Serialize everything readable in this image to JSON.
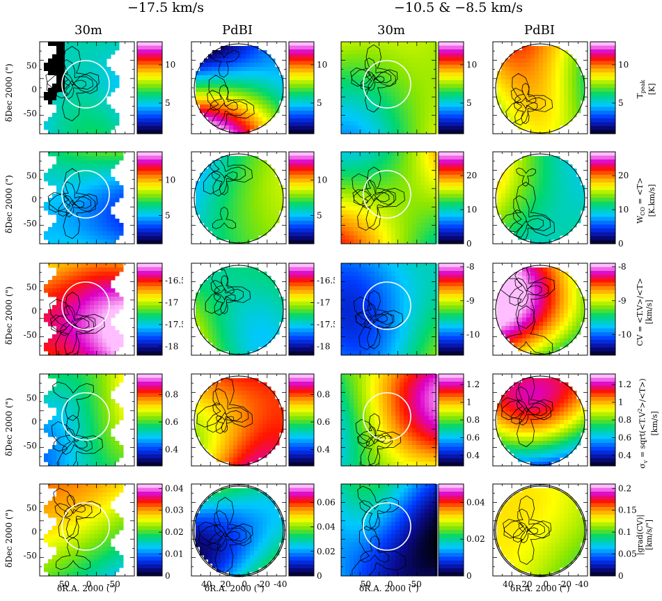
{
  "figure": {
    "group_headers": [
      "−17.5 km/s",
      "−10.5 & −8.5 km/s"
    ],
    "column_headers": [
      "30m",
      "PdBI",
      "30m",
      "PdBI"
    ],
    "y_axis_label": "δDec 2000 (\")",
    "x_axis_label": "δR.A. 2000 (\")",
    "row_quantity_labels": [
      [
        "T",
        "peak",
        "[K]"
      ],
      [
        "W",
        "CO",
        " = <T>",
        "[K.km/s]"
      ],
      [
        "CV = <T.V>/<T>",
        "[km/s]"
      ],
      [
        "σ",
        "v",
        " = sqrt(<T.V",
        "2",
        ">/<T>)",
        "[km/s]"
      ],
      [
        "|grad(CV)|",
        "[km/s/\"]"
      ]
    ]
  },
  "chart_data": {
    "type": "heatmap",
    "layout": "5 rows x 4 columns of map panels",
    "x_ticks_30m": [
      50,
      0,
      -50
    ],
    "x_ticks_pdbi": [
      40,
      20,
      0,
      -20,
      -40
    ],
    "y_ticks": [
      50,
      0,
      -50
    ],
    "colorbar_ticks": [
      [
        [
          5,
          10
        ],
        [
          5,
          10
        ],
        [
          5,
          10
        ],
        [
          5,
          10
        ]
      ],
      [
        [
          5,
          10
        ],
        [
          5,
          10
        ],
        [
          0,
          10,
          20
        ],
        [
          0,
          10,
          20
        ]
      ],
      [
        [
          -16.5,
          -17,
          -17.5,
          -18
        ],
        [
          -16.5,
          -17,
          -17.5,
          -18
        ],
        [
          -8,
          -9,
          -10
        ],
        [
          -8,
          -9,
          -10
        ]
      ],
      [
        [
          0.8,
          0.6,
          0.4
        ],
        [
          0.8,
          0.6,
          0.4
        ],
        [
          1.2,
          1,
          0.8,
          0.6,
          0.4
        ],
        [
          1.2,
          1,
          0.8,
          0.6,
          0.4
        ]
      ],
      [
        [
          0.04,
          0.03,
          0.02,
          0.01,
          0
        ],
        [
          0.06,
          0.04,
          0.02,
          0
        ],
        [
          0.04,
          0.02,
          0
        ],
        [
          0.2,
          0.15,
          0.1,
          0.05,
          0
        ]
      ]
    ],
    "colorbar_ranges": [
      [
        [
          1,
          13
        ],
        [
          1,
          13
        ],
        [
          1,
          13
        ],
        [
          1,
          13
        ]
      ],
      [
        [
          1,
          14
        ],
        [
          1,
          14
        ],
        [
          0,
          27
        ],
        [
          0,
          27
        ]
      ],
      [
        [
          -18.2,
          -16.1
        ],
        [
          -18.2,
          -16.1
        ],
        [
          -10.6,
          -7.9
        ],
        [
          -10.6,
          -7.9
        ]
      ],
      [
        [
          0.28,
          0.95
        ],
        [
          0.28,
          0.95
        ],
        [
          0.28,
          1.32
        ],
        [
          0.28,
          1.32
        ]
      ],
      [
        [
          0,
          0.042
        ],
        [
          0,
          0.075
        ],
        [
          0,
          0.05
        ],
        [
          0,
          0.21
        ]
      ]
    ]
  }
}
